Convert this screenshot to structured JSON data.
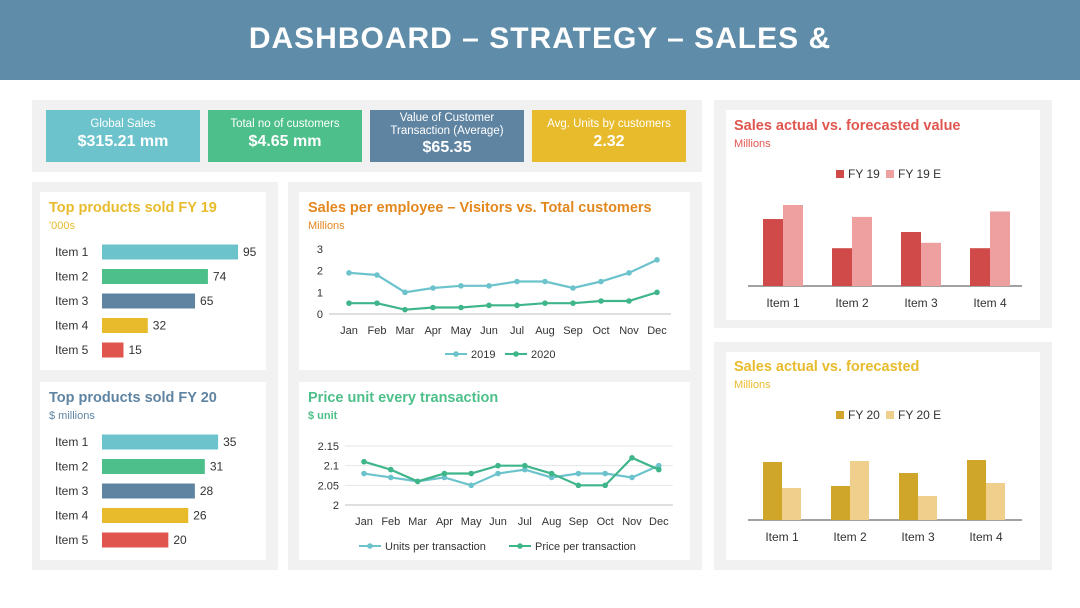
{
  "header": {
    "title": "DASHBOARD – STRATEGY – SALES &"
  },
  "colors": {
    "teal": "#6cc3cc",
    "green": "#4dbf8a",
    "slate": "#5f84a2",
    "gold": "#e8bb2c",
    "red": "#e0564f",
    "banner": "#5f8ca8"
  },
  "kpis": [
    {
      "label": "Global Sales",
      "value": "$315.21 mm"
    },
    {
      "label": "Total no of customers",
      "value": "$4.65 mm"
    },
    {
      "label": "Value of Customer Transaction (Average)",
      "value": "$65.35"
    },
    {
      "label": "Avg. Units by customers",
      "value": "2.32"
    }
  ],
  "top19": {
    "title": "Top products  sold FY 19",
    "subtitle": "'000s",
    "items": [
      {
        "label": "Item 1",
        "value": 95
      },
      {
        "label": "Item 2",
        "value": 74
      },
      {
        "label": "Item 3",
        "value": 65
      },
      {
        "label": "Item 4",
        "value": 32
      },
      {
        "label": "Item 5",
        "value": 15
      }
    ]
  },
  "top20": {
    "title": "Top products  sold FY 20",
    "subtitle": "$ millions",
    "items": [
      {
        "label": "Item 1",
        "value": 35
      },
      {
        "label": "Item 2",
        "value": 31
      },
      {
        "label": "Item 3",
        "value": 28
      },
      {
        "label": "Item 4",
        "value": 26
      },
      {
        "label": "Item 5",
        "value": 20
      }
    ]
  },
  "chart_data": [
    {
      "id": "visitors",
      "type": "line",
      "title": "Sales per employee – Visitors vs. Total customers",
      "subtitle": "Millions",
      "categories": [
        "Jan",
        "Feb",
        "Mar",
        "Apr",
        "May",
        "Jun",
        "Jul",
        "Aug",
        "Sep",
        "Oct",
        "Nov",
        "Dec"
      ],
      "yticks": [
        "3",
        "2",
        "1",
        "0"
      ],
      "ylim": [
        0,
        3
      ],
      "series": [
        {
          "name": "2019",
          "values": [
            1.9,
            1.8,
            1.0,
            1.2,
            1.3,
            1.3,
            1.5,
            1.5,
            1.2,
            1.5,
            1.9,
            2.5
          ]
        },
        {
          "name": "2020",
          "values": [
            0.5,
            0.5,
            0.2,
            0.3,
            0.3,
            0.4,
            0.4,
            0.5,
            0.5,
            0.6,
            0.6,
            1.0
          ]
        }
      ]
    },
    {
      "id": "price",
      "type": "line",
      "title": "Price unit every transaction",
      "subtitle": "$ unit",
      "categories": [
        "Jan",
        "Feb",
        "Mar",
        "Apr",
        "May",
        "Jun",
        "Jul",
        "Aug",
        "Sep",
        "Oct",
        "Nov",
        "Dec"
      ],
      "yticks": [
        "2.15",
        "2.1",
        "2.05",
        "2"
      ],
      "ylim": [
        2,
        2.15
      ],
      "series": [
        {
          "name": "Units per transaction",
          "values": [
            2.08,
            2.07,
            2.06,
            2.07,
            2.05,
            2.08,
            2.09,
            2.07,
            2.08,
            2.08,
            2.07,
            2.1
          ]
        },
        {
          "name": "Price per transaction",
          "values": [
            2.11,
            2.09,
            2.06,
            2.08,
            2.08,
            2.1,
            2.1,
            2.08,
            2.05,
            2.05,
            2.12,
            2.09
          ]
        }
      ]
    },
    {
      "id": "forecast19",
      "type": "bar",
      "title": "Sales actual vs. forecasted value",
      "subtitle": "Millions",
      "categories": [
        "Item 1",
        "Item 2",
        "Item 3",
        "Item 4"
      ],
      "ylim": [
        0,
        10
      ],
      "series": [
        {
          "name": "FY 19",
          "values": [
            6.2,
            3.5,
            5.0,
            3.5
          ]
        },
        {
          "name": "FY 19 E",
          "values": [
            7.5,
            6.4,
            4.0,
            6.9
          ]
        }
      ]
    },
    {
      "id": "forecast20",
      "type": "bar",
      "title": "Sales actual vs. forecasted",
      "subtitle": "Millions",
      "categories": [
        "Item 1",
        "Item 2",
        "Item 3",
        "Item 4"
      ],
      "ylim": [
        0,
        10
      ],
      "series": [
        {
          "name": "FY 20",
          "values": [
            5.8,
            3.4,
            4.7,
            6.0
          ]
        },
        {
          "name": "FY 20 E",
          "values": [
            3.2,
            5.9,
            2.4,
            3.7
          ]
        }
      ]
    }
  ]
}
